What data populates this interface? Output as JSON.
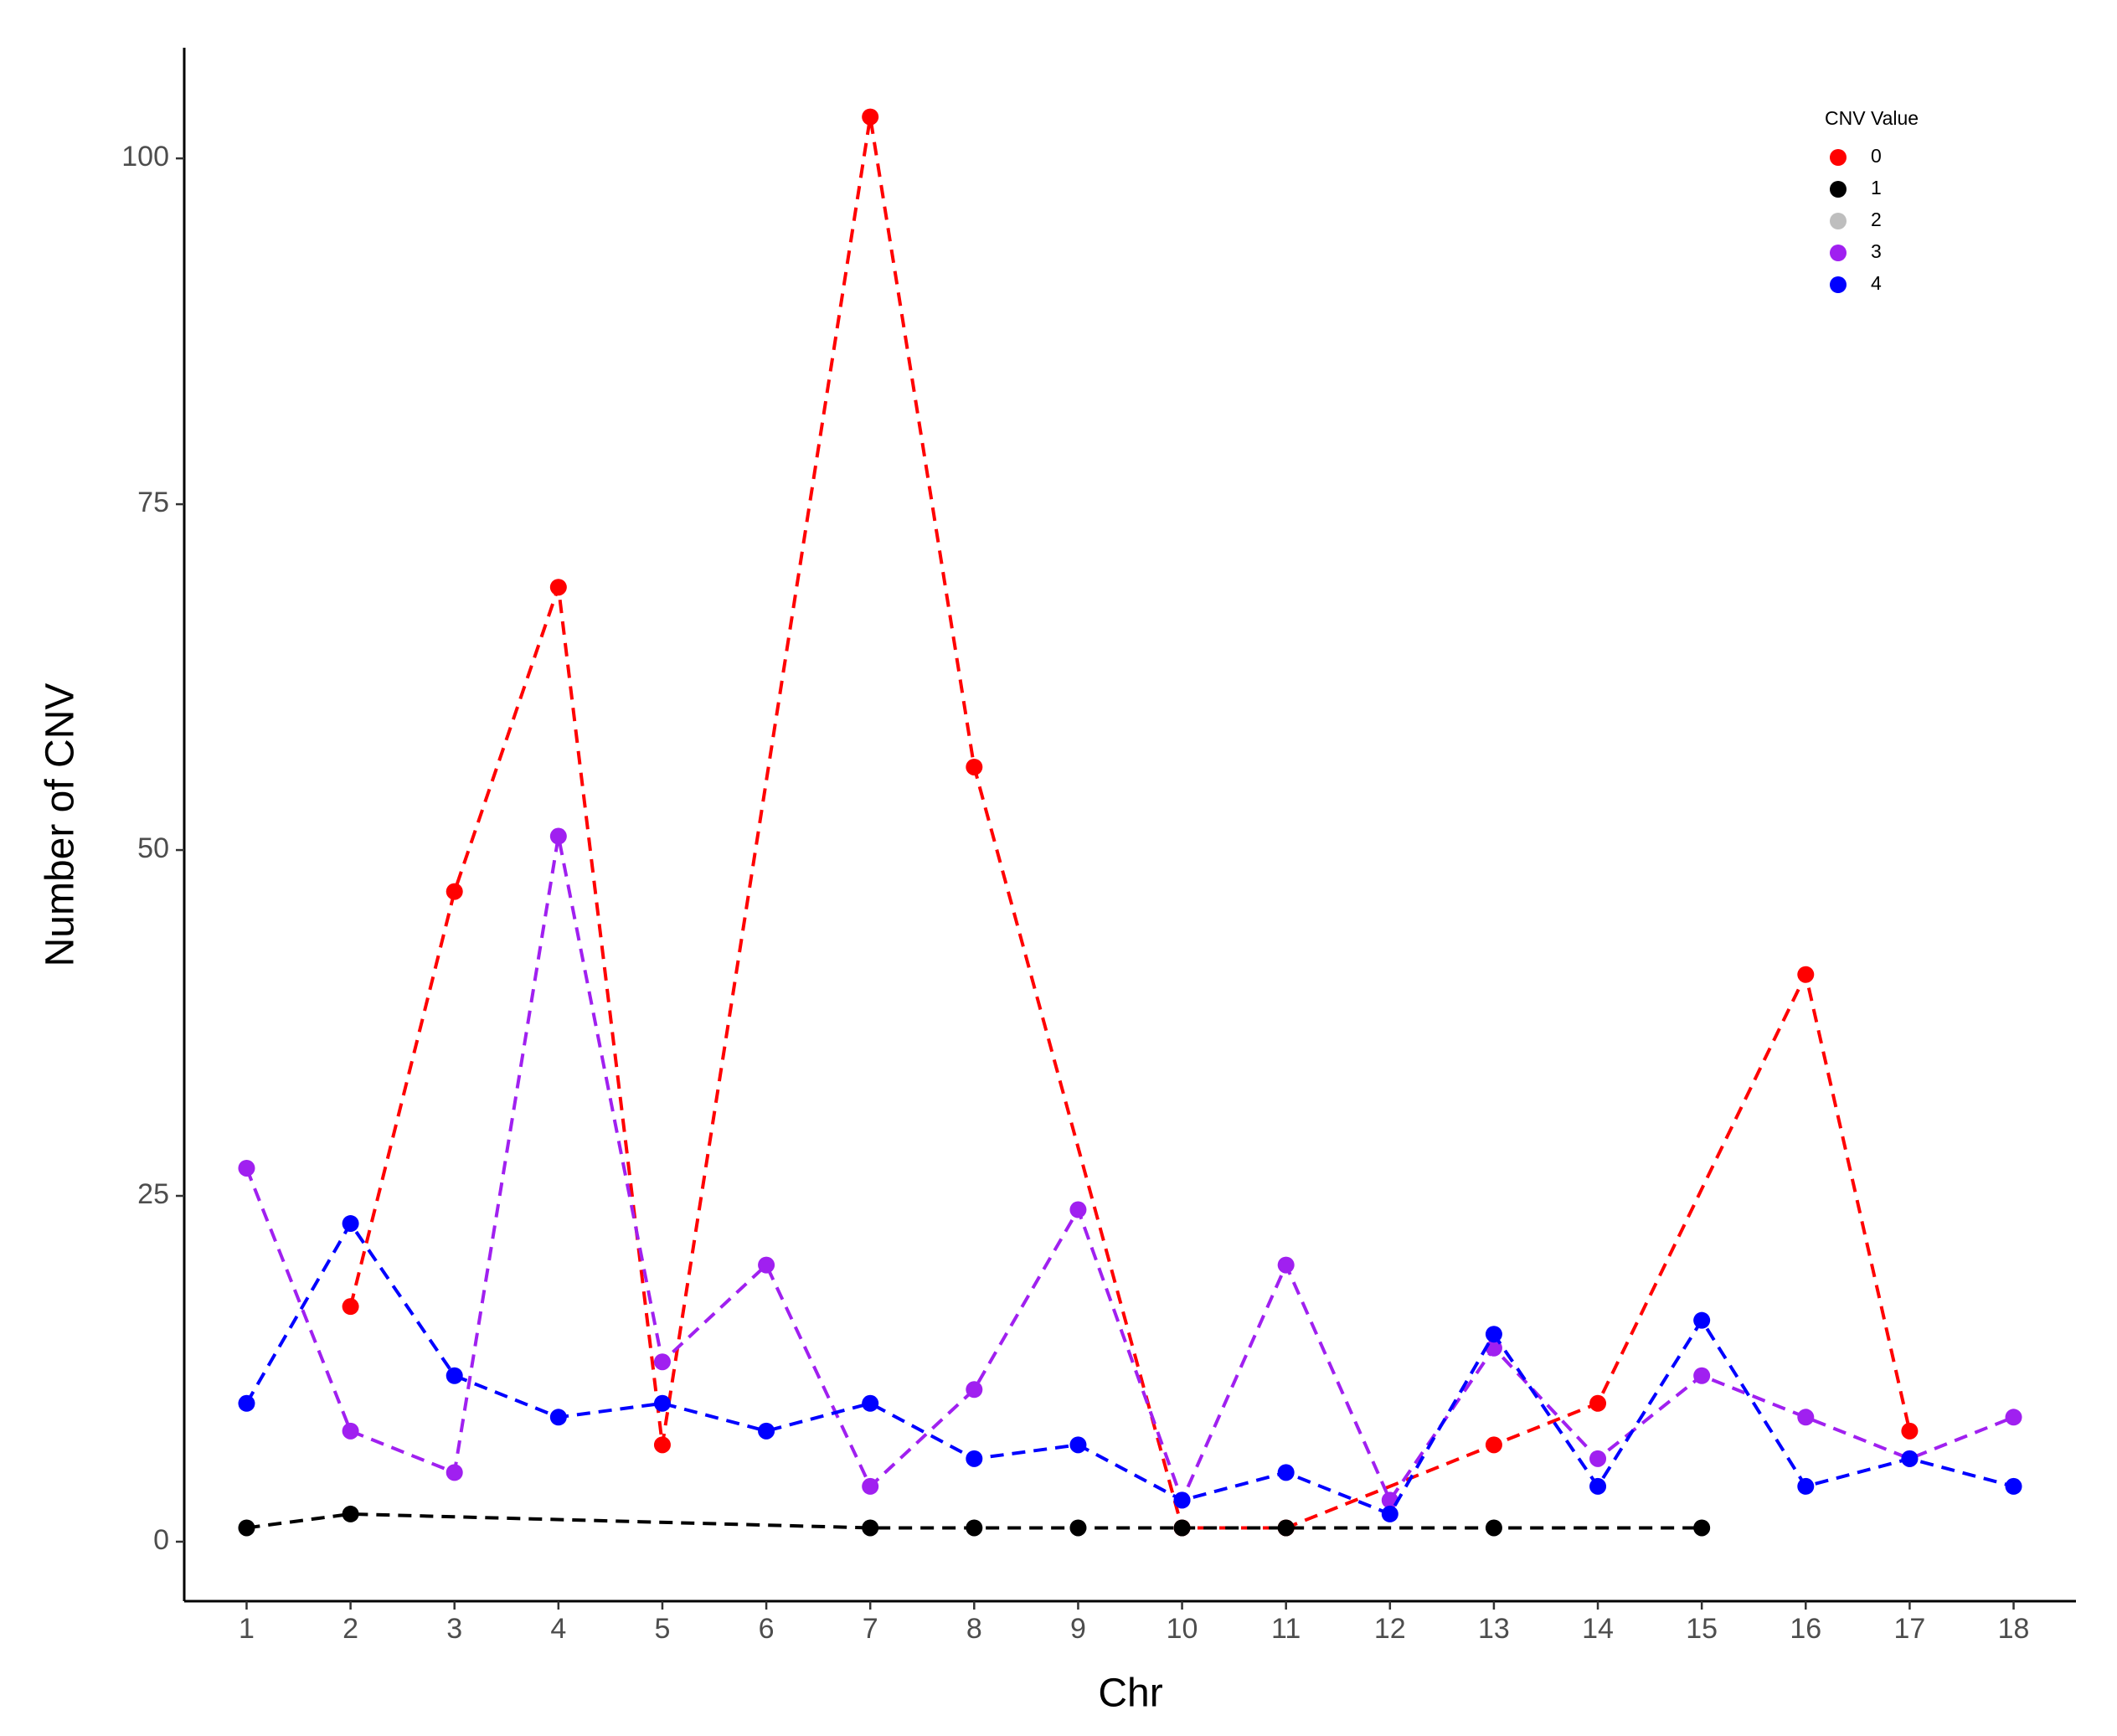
{
  "chart_data": {
    "type": "line",
    "x_label": "Chr",
    "y_label": "Number of CNV",
    "legend_title": "CNV Value",
    "legend_position": "top-right",
    "line_style": "dashed",
    "markers": true,
    "xlim": [
      0.4,
      18.6
    ],
    "xticks": [
      1,
      2,
      3,
      4,
      5,
      6,
      7,
      8,
      9,
      10,
      11,
      12,
      13,
      14,
      15,
      16,
      17,
      18
    ],
    "ylim": [
      -4.3,
      108
    ],
    "yticks": [
      0,
      25,
      50,
      75,
      100
    ],
    "series": [
      {
        "name": "0",
        "color": "#ff0000",
        "x": [
          2,
          3,
          4,
          5,
          7,
          8,
          10,
          11,
          13,
          14,
          16,
          17
        ],
        "values": [
          17,
          47,
          69,
          7,
          103,
          56,
          1,
          1,
          7,
          10,
          41,
          8
        ]
      },
      {
        "name": "1",
        "color": "#000000",
        "x": [
          1,
          2,
          7,
          8,
          9,
          10,
          11,
          13,
          15
        ],
        "values": [
          1,
          2,
          1,
          1,
          1,
          1,
          1,
          1,
          1
        ]
      },
      {
        "name": "2",
        "color": "#bebebe",
        "x": [],
        "values": []
      },
      {
        "name": "3",
        "color": "#a020f0",
        "x": [
          1,
          2,
          3,
          4,
          5,
          6,
          7,
          8,
          9,
          10,
          11,
          12,
          13,
          14,
          15,
          16,
          17,
          18
        ],
        "values": [
          27,
          8,
          5,
          51,
          13,
          20,
          4,
          11,
          24,
          3,
          20,
          3,
          14,
          6,
          12,
          9,
          6,
          9
        ]
      },
      {
        "name": "4",
        "color": "#0000ff",
        "x": [
          1,
          2,
          3,
          4,
          5,
          6,
          7,
          8,
          9,
          10,
          11,
          12,
          13,
          14,
          15,
          16,
          17,
          18
        ],
        "values": [
          10,
          23,
          12,
          9,
          10,
          8,
          10,
          6,
          7,
          3,
          5,
          2,
          15,
          4,
          16,
          4,
          6,
          4
        ]
      }
    ]
  }
}
